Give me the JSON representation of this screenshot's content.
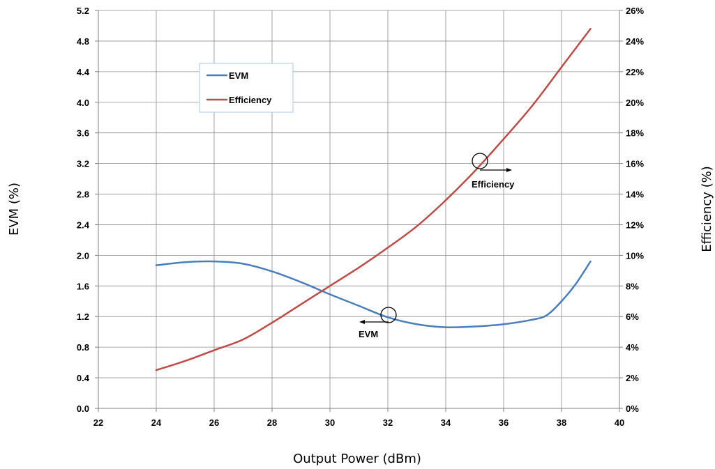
{
  "chart_data": {
    "type": "line",
    "xlabel": "Output Power (dBm)",
    "ylabel_left": "EVM (%)",
    "ylabel_right": "Efficiency (%)",
    "xlim": [
      22,
      40
    ],
    "ylim_left": [
      0,
      5.2
    ],
    "ylim_right": [
      0,
      26
    ],
    "x_ticks": [
      "22",
      "24",
      "26",
      "28",
      "30",
      "32",
      "34",
      "36",
      "38",
      "40"
    ],
    "y_left_ticks": [
      "0.0",
      "0.4",
      "0.8",
      "1.2",
      "1.6",
      "2.0",
      "2.4",
      "2.8",
      "3.2",
      "3.6",
      "4.0",
      "4.4",
      "4.8",
      "5.2"
    ],
    "y_right_ticks": [
      "0%",
      "2%",
      "4%",
      "6%",
      "8%",
      "10%",
      "12%",
      "14%",
      "16%",
      "18%",
      "20%",
      "22%",
      "24%",
      "26%"
    ],
    "grid": true,
    "legend_position": "top-left",
    "series": [
      {
        "name": "EVM",
        "axis": "left",
        "color": "#4a7ebb",
        "points": [
          [
            24,
            1.87
          ],
          [
            25,
            1.91
          ],
          [
            26,
            1.92
          ],
          [
            27,
            1.89
          ],
          [
            28,
            1.79
          ],
          [
            29,
            1.65
          ],
          [
            30,
            1.49
          ],
          [
            31,
            1.34
          ],
          [
            32,
            1.19
          ],
          [
            33,
            1.1
          ],
          [
            34,
            1.06
          ],
          [
            35,
            1.07
          ],
          [
            36,
            1.1
          ],
          [
            37,
            1.16
          ],
          [
            37.5,
            1.22
          ],
          [
            38,
            1.4
          ],
          [
            38.5,
            1.63
          ],
          [
            39,
            1.92
          ]
        ]
      },
      {
        "name": "Efficiency",
        "axis": "right",
        "color": "#be4b48",
        "points": [
          [
            24,
            2.5
          ],
          [
            25,
            3.1
          ],
          [
            26,
            3.8
          ],
          [
            27,
            4.5
          ],
          [
            28,
            5.6
          ],
          [
            29,
            6.8
          ],
          [
            30,
            8.0
          ],
          [
            31,
            9.2
          ],
          [
            32,
            10.5
          ],
          [
            33,
            11.9
          ],
          [
            34,
            13.6
          ],
          [
            35,
            15.5
          ],
          [
            36,
            17.6
          ],
          [
            37,
            19.8
          ],
          [
            38,
            22.3
          ],
          [
            39,
            24.8
          ]
        ]
      }
    ],
    "annotations": [
      {
        "text": "Efficiency",
        "x": 35.2,
        "y_right": 16.2,
        "arrow": "right"
      },
      {
        "text": "EVM",
        "x": 32.0,
        "y_left": 1.2,
        "arrow": "left"
      }
    ]
  }
}
